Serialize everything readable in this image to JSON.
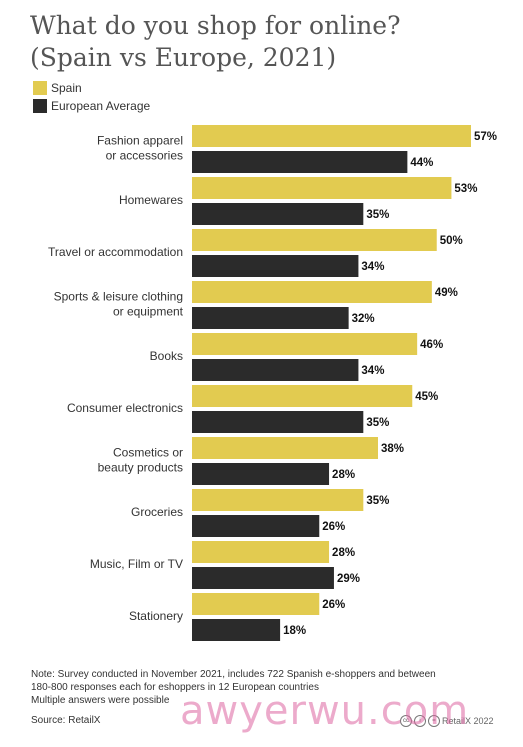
{
  "title_line1": "What do you shop for online?",
  "title_line2": "(Spain vs Europe, 2021)",
  "colors": {
    "spain": "#E2CB50",
    "europe": "#2B2B2B"
  },
  "chart_data": {
    "type": "bar",
    "orientation": "horizontal",
    "categories": [
      [
        "Fashion apparel",
        "or accessories"
      ],
      [
        "Homewares"
      ],
      [
        "Travel or accommodation"
      ],
      [
        "Sports & leisure clothing",
        "or equipment"
      ],
      [
        "Books"
      ],
      [
        "Consumer electronics"
      ],
      [
        "Cosmetics or",
        "beauty products"
      ],
      [
        "Groceries"
      ],
      [
        "Music, Film or TV"
      ],
      [
        "Stationery"
      ]
    ],
    "series": [
      {
        "name": "Spain",
        "values": [
          57,
          53,
          50,
          49,
          46,
          45,
          38,
          35,
          28,
          26
        ]
      },
      {
        "name": "European Average",
        "values": [
          44,
          35,
          34,
          32,
          34,
          35,
          28,
          26,
          29,
          18
        ]
      }
    ],
    "value_suffix": "%",
    "xlim": [
      0,
      57
    ],
    "legend_position": "top-left",
    "grid": false
  },
  "note_lines": [
    "Note: Survey conducted in November 2021, includes 722 Spanish e-shoppers and between",
    "180-800 responses each for eshoppers in 12 European countries",
    "Multiple answers were possible"
  ],
  "source": "Source: RetailX",
  "credit": "RetailX 2022",
  "cc_icons": [
    "cc",
    "i",
    "="
  ],
  "watermark": "awyerwu.com"
}
